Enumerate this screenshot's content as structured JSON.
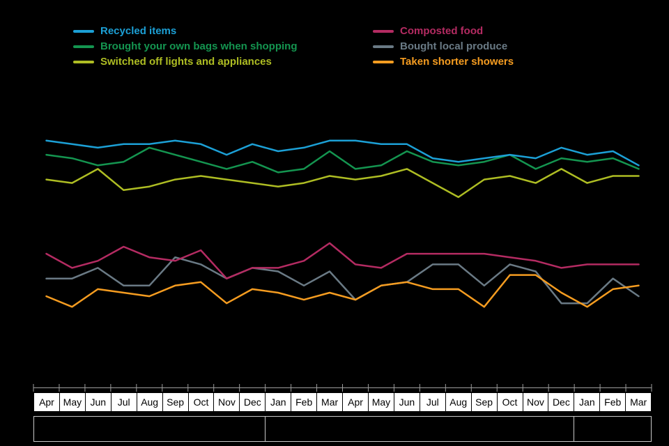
{
  "page": {
    "background": "#000000"
  },
  "chart_data": {
    "type": "line",
    "title": "",
    "xlabel": "",
    "ylabel": "",
    "ylim": [
      0,
      80
    ],
    "grid": false,
    "legend_position": "top",
    "x": [
      "Apr",
      "May",
      "Jun",
      "Jul",
      "Aug",
      "Sep",
      "Oct",
      "Nov",
      "Dec",
      "Jan",
      "Feb",
      "Mar",
      "Apr",
      "May",
      "Jun",
      "Jul",
      "Aug",
      "Sep",
      "Oct",
      "Nov",
      "Dec",
      "Jan",
      "Feb",
      "Mar"
    ],
    "series": [
      {
        "name": "Recycled items",
        "color": "#1CA0D6",
        "values": [
          70,
          69,
          68,
          69,
          69,
          70,
          69,
          66,
          69,
          67,
          68,
          70,
          70,
          69,
          69,
          65,
          64,
          65,
          66,
          65,
          68,
          66,
          67,
          63
        ]
      },
      {
        "name": "Brought your own bags when shopping",
        "color": "#149550",
        "values": [
          66,
          65,
          63,
          64,
          68,
          66,
          64,
          62,
          64,
          61,
          62,
          67,
          62,
          63,
          67,
          64,
          63,
          64,
          66,
          62,
          65,
          64,
          65,
          62
        ]
      },
      {
        "name": "Switched off lights and appliances",
        "color": "#AEBD23",
        "values": [
          59,
          58,
          62,
          56,
          57,
          59,
          60,
          59,
          58,
          57,
          58,
          60,
          59,
          60,
          62,
          58,
          54,
          59,
          60,
          58,
          62,
          58,
          60,
          60
        ]
      },
      {
        "name": "Composted food",
        "color": "#B42B62",
        "values": [
          38,
          34,
          36,
          40,
          37,
          36,
          39,
          31,
          34,
          34,
          36,
          41,
          35,
          34,
          38,
          38,
          38,
          38,
          37,
          36,
          34,
          35,
          35,
          35
        ]
      },
      {
        "name": "Bought local produce",
        "color": "#6A7A85",
        "values": [
          31,
          31,
          34,
          29,
          29,
          37,
          35,
          31,
          34,
          33,
          29,
          33,
          25,
          29,
          30,
          35,
          35,
          29,
          35,
          33,
          24,
          24,
          31,
          26
        ]
      },
      {
        "name": "Taken shorter showers",
        "color": "#F59C20",
        "values": [
          26,
          23,
          28,
          27,
          26,
          29,
          30,
          24,
          28,
          27,
          25,
          27,
          25,
          29,
          30,
          28,
          28,
          23,
          32,
          32,
          27,
          23,
          28,
          29
        ]
      }
    ]
  },
  "axis": {
    "line_color": "#9e9e9e",
    "tick_color": "#9e9e9e",
    "month_box_fill": "#ffffff",
    "month_text_color": "#000000",
    "year_groups": [
      {
        "label": "",
        "span": 9
      },
      {
        "label": "",
        "span": 12
      },
      {
        "label": "",
        "span": 3
      }
    ]
  }
}
